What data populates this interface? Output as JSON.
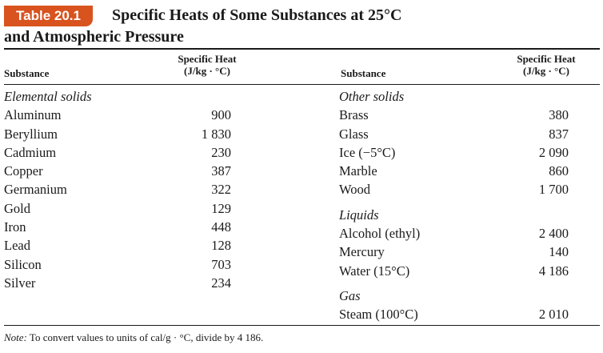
{
  "badge": "Table 20.1",
  "title_line1": "Specific Heats of Some Substances at 25°C",
  "title_line2": "and Atmospheric Pressure",
  "headers": {
    "substance": "Substance",
    "specific_heat_line1": "Specific Heat",
    "specific_heat_line2": "(J/kg · °C)"
  },
  "left": {
    "category": "Elemental solids",
    "rows": [
      {
        "name": "Aluminum",
        "value": "900"
      },
      {
        "name": "Beryllium",
        "value": "1 830"
      },
      {
        "name": "Cadmium",
        "value": "230"
      },
      {
        "name": "Copper",
        "value": "387"
      },
      {
        "name": "Germanium",
        "value": "322"
      },
      {
        "name": "Gold",
        "value": "129"
      },
      {
        "name": "Iron",
        "value": "448"
      },
      {
        "name": "Lead",
        "value": "128"
      },
      {
        "name": "Silicon",
        "value": "703"
      },
      {
        "name": "Silver",
        "value": "234"
      }
    ]
  },
  "right": {
    "groups": [
      {
        "category": "Other solids",
        "rows": [
          {
            "name": "Brass",
            "value": "380"
          },
          {
            "name": "Glass",
            "value": "837"
          },
          {
            "name": "Ice (−5°C)",
            "value": "2 090"
          },
          {
            "name": "Marble",
            "value": "860"
          },
          {
            "name": "Wood",
            "value": "1 700"
          }
        ]
      },
      {
        "category": "Liquids",
        "rows": [
          {
            "name": "Alcohol (ethyl)",
            "value": "2 400"
          },
          {
            "name": "Mercury",
            "value": "140"
          },
          {
            "name": "Water (15°C)",
            "value": "4 186"
          }
        ]
      },
      {
        "category": "Gas",
        "rows": [
          {
            "name": "Steam (100°C)",
            "value": "2 010"
          }
        ]
      }
    ]
  },
  "note": {
    "label": "Note:",
    "text": " To convert values to units of cal/g · °C, divide by 4 186."
  },
  "colors": {
    "badge_background": "#d8531e",
    "badge_text": "#ffffff",
    "text": "#1a1a1a"
  }
}
